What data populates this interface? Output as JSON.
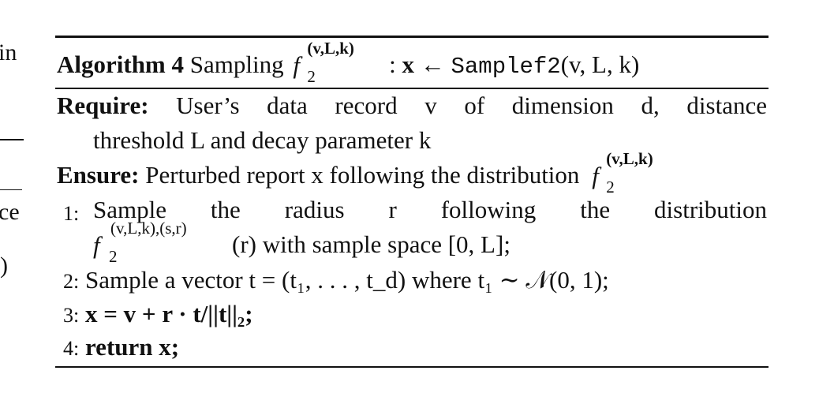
{
  "left_fragments": {
    "f1": "in",
    "f2": "ce",
    "f3": ")"
  },
  "algorithm": {
    "label": "Algorithm 4",
    "title_prefix": "Sampling",
    "title_fn": "f",
    "title_fn_sup": "(v,L,k)",
    "title_fn_sub": "2",
    "title_colon": ":",
    "title_x": "x",
    "title_arrow": "←",
    "title_call": "Samplef2",
    "title_args": "(v, L, k)"
  },
  "require": {
    "label": "Require:",
    "line1": "User’s data record v of dimension d, distance",
    "line2": "threshold L and decay parameter k"
  },
  "ensure": {
    "label": "Ensure:",
    "text": "Perturbed report x following the distribution",
    "fn": "f",
    "fn_sup": "(v,L,k)",
    "fn_sub": "2"
  },
  "steps": [
    {
      "num": "1:",
      "line1": "Sample the radius r following the distribution",
      "fn": "f",
      "fn_sup": "(v,L,k),(s,r)",
      "fn_sub": "2",
      "line2": "(r) with sample space [0, L];"
    },
    {
      "num": "2:",
      "text": "Sample a vector t = (t₁, . . . , t_d) where t₁ ∼ 𝒩(0, 1);"
    },
    {
      "num": "3:",
      "text": "x = v + r · t/||t||₂;"
    },
    {
      "num": "4:",
      "keyword": "return",
      "text": "x;"
    }
  ]
}
